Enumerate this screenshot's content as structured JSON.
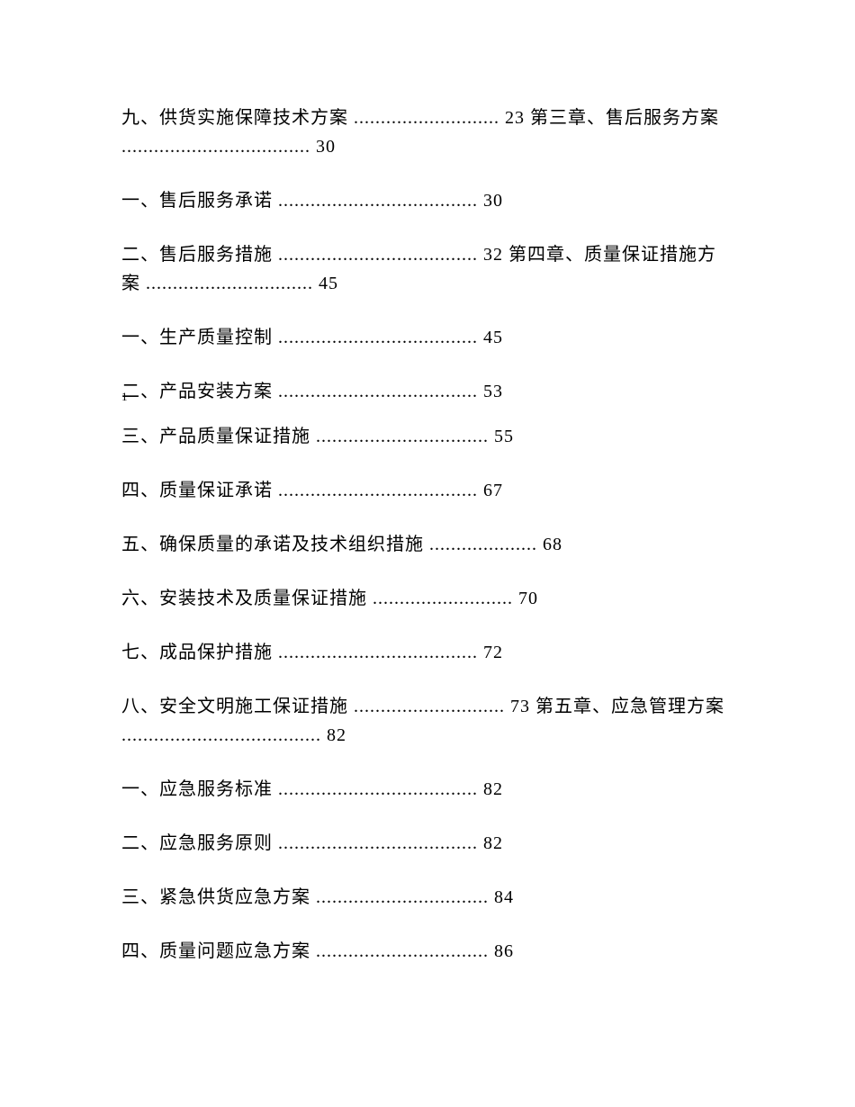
{
  "entries": [
    {
      "text": "九、供货实施保障技术方案 ........................... 23 第三章、售后服务方案 ................................... 30"
    },
    {
      "text": "一、售后服务承诺 ..................................... 30"
    },
    {
      "text": "二、售后服务措施 ..................................... 32 第四章、质量保证措施方案 ............................... 45"
    },
    {
      "text": "一、生产质量控制 ..................................... 45"
    },
    {
      "text": "二、产品安装方案 ..................................... 53"
    },
    {
      "text": "三、产品质量保证措施 ................................ 55"
    },
    {
      "text": "四、质量保证承诺 ..................................... 67"
    },
    {
      "text": "五、确保质量的承诺及技术组织措施 .................... 68"
    },
    {
      "text": "六、安装技术及质量保证措施 .......................... 70"
    },
    {
      "text": "七、成品保护措施 ..................................... 72"
    },
    {
      "text": "八、安全文明施工保证措施 ............................ 73 第五章、应急管理方案 ..................................... 82"
    },
    {
      "text": "一、应急服务标准 ..................................... 82"
    },
    {
      "text": "二、应急服务原则 ..................................... 82"
    },
    {
      "text": "三、紧急供货应急方案 ................................ 84"
    },
    {
      "text": "四、质量问题应急方案 ................................ 86"
    }
  ],
  "page_marker": "1",
  "colors": {
    "text": "#000000",
    "background": "#ffffff"
  },
  "typography": {
    "body_fontsize": 20,
    "marker_fontsize": 13,
    "font_family": "SimSun"
  }
}
